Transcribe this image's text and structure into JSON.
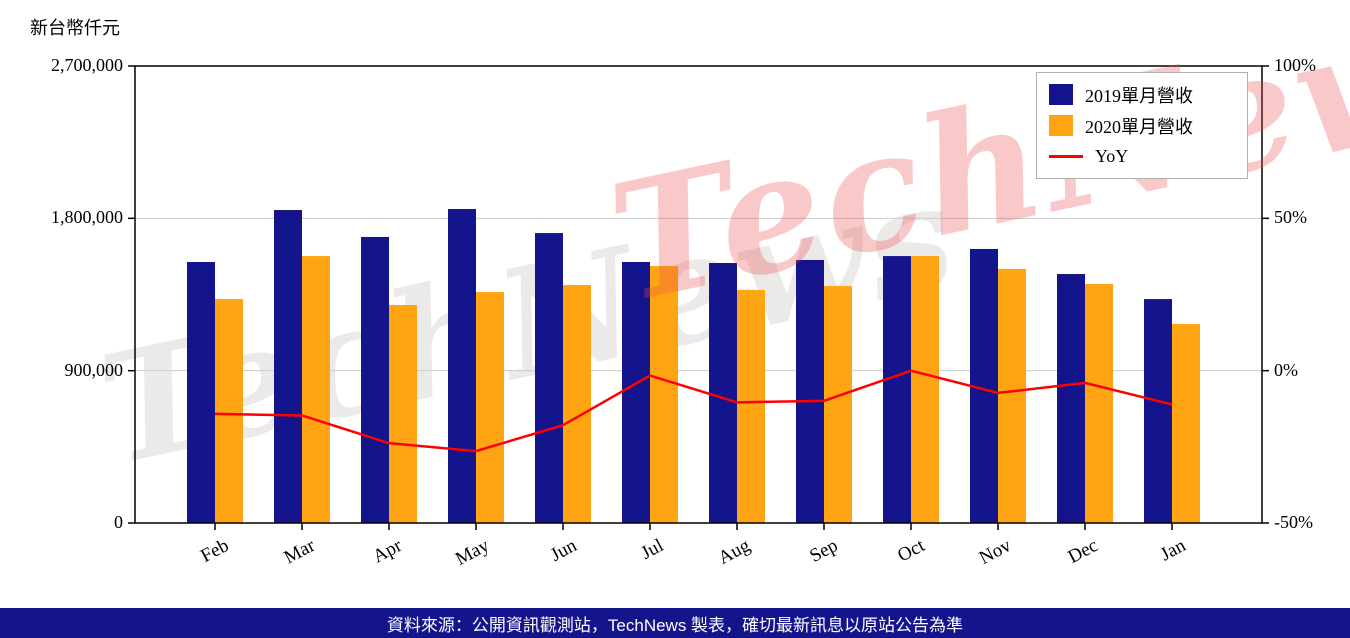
{
  "header": {
    "y_axis_unit_label": "新台幣仟元"
  },
  "watermark": {
    "text": "TechNews"
  },
  "legend": {
    "items": [
      {
        "label": "2019單月營收",
        "color": "#14148C",
        "type": "box"
      },
      {
        "label": "2020單月營收",
        "color": "#FFA513",
        "type": "box"
      },
      {
        "label": "YoY",
        "color": "#FF0000",
        "type": "line"
      }
    ]
  },
  "footer": {
    "text": "資料來源：公開資訊觀測站，TechNews 製表，確切最新訊息以原站公告為準"
  },
  "chart_data": {
    "type": "bar",
    "subtype": "grouped-bars-with-line",
    "categories": [
      "Feb",
      "Mar",
      "Apr",
      "May",
      "Jun",
      "Jul",
      "Aug",
      "Sep",
      "Oct",
      "Nov",
      "Dec",
      "Jan"
    ],
    "series": [
      {
        "name": "2019單月營收",
        "type": "bar",
        "axis": "left",
        "color": "#14148C",
        "values": [
          1542000,
          1849000,
          1690000,
          1855000,
          1713000,
          1542000,
          1536000,
          1554000,
          1577000,
          1619000,
          1471000,
          1323000
        ]
      },
      {
        "name": "2020單月營收",
        "type": "bar",
        "axis": "left",
        "color": "#FFA513",
        "values": [
          1323000,
          1577000,
          1288000,
          1365000,
          1406000,
          1518000,
          1377000,
          1400000,
          1577000,
          1501000,
          1412000,
          1176000
        ]
      },
      {
        "name": "YoY",
        "type": "line",
        "axis": "right",
        "color": "#FF0000",
        "values": [
          -14.2,
          -14.7,
          -23.8,
          -26.4,
          -17.9,
          -1.6,
          -10.4,
          -9.9,
          0.0,
          -7.3,
          -4.0,
          -11.1
        ]
      }
    ],
    "left_axis": {
      "label": "新台幣仟元",
      "ticks": [
        0,
        900000,
        1800000,
        2700000
      ],
      "tick_labels": [
        "0",
        "900,000",
        "1,800,000",
        "2,700,000"
      ],
      "range": [
        0,
        2700000
      ]
    },
    "right_axis": {
      "ticks": [
        -50,
        0,
        50,
        100
      ],
      "tick_labels": [
        "-50%",
        "0%",
        "50%",
        "100%"
      ],
      "range": [
        -50,
        100
      ]
    },
    "grid": true,
    "legend_position": "top-right",
    "title": "",
    "xlabel": "",
    "ylabel": "新台幣仟元"
  }
}
